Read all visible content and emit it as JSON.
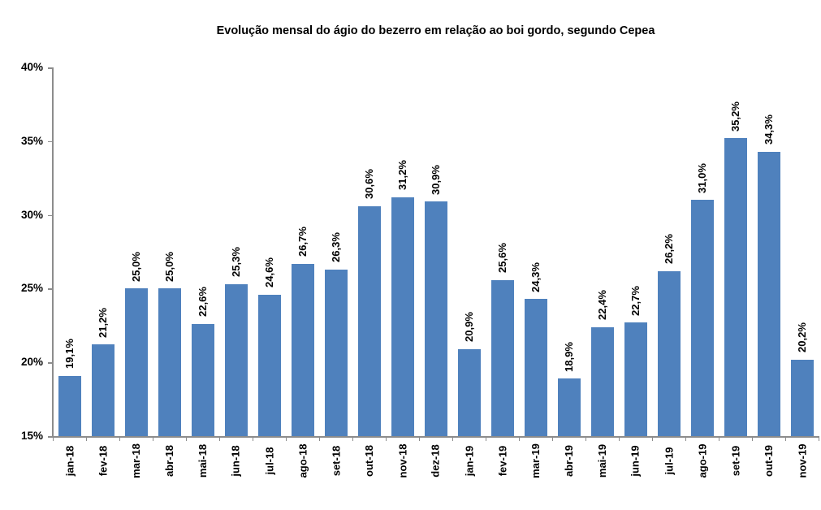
{
  "chart": {
    "title": "Evolução mensal do ágio do bezerro em relação ao boi gordo, segundo Cepea"
  },
  "chart_data": {
    "type": "bar",
    "title": "Evolução mensal do ágio do bezerro em relação ao boi gordo, segundo Cepea",
    "xlabel": "",
    "ylabel": "",
    "categories": [
      "jan-18",
      "fev-18",
      "mar-18",
      "abr-18",
      "mai-18",
      "jun-18",
      "jul-18",
      "ago-18",
      "set-18",
      "out-18",
      "nov-18",
      "dez-18",
      "jan-19",
      "fev-19",
      "mar-19",
      "abr-19",
      "mai-19",
      "jun-19",
      "jul-19",
      "ago-19",
      "set-19",
      "out-19",
      "nov-19"
    ],
    "values": [
      19.1,
      21.2,
      25.0,
      25.0,
      22.6,
      25.3,
      24.6,
      26.7,
      26.3,
      30.6,
      31.2,
      30.9,
      20.9,
      25.6,
      24.3,
      18.9,
      22.4,
      22.7,
      26.2,
      31.0,
      35.2,
      34.3,
      20.2
    ],
    "value_labels": [
      "19,1%",
      "21,2%",
      "25,0%",
      "25,0%",
      "22,6%",
      "25,3%",
      "24,6%",
      "26,7%",
      "26,3%",
      "30,6%",
      "31,2%",
      "30,9%",
      "20,9%",
      "25,6%",
      "24,3%",
      "18,9%",
      "22,4%",
      "22,7%",
      "26,2%",
      "31,0%",
      "35,2%",
      "34,3%",
      "20,2%"
    ],
    "ylim": [
      15,
      40
    ],
    "yticks": [
      40,
      35,
      30,
      25,
      20,
      15
    ],
    "ytick_labels": [
      "40%",
      "35%",
      "30%",
      "25%",
      "20%",
      "15%"
    ],
    "grid": false,
    "legend": false,
    "bar_color": "#4f81bd",
    "axis_color": "#8c8c8c",
    "text_color": "#000000",
    "background_color": "#ffffff"
  }
}
